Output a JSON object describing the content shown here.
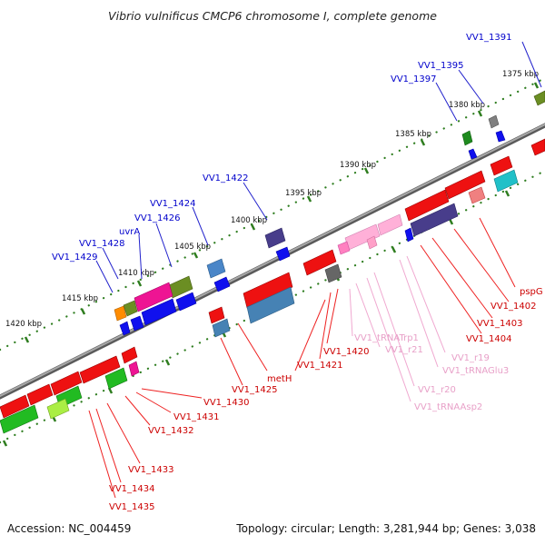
{
  "title": "Vibrio vulnificus CMCP6 chromosome I, complete genome",
  "footer": {
    "accession": "Accession: NC_004459",
    "summary": "Topology: circular; Length: 3,281,944 bp; Genes: 3,038"
  },
  "colors": {
    "axis": "#7f7f7f",
    "tick_marks": "#2e7d1f",
    "label_blue": "#0000cc",
    "label_red": "#cc0000",
    "label_pink": "#e8a0c8",
    "leader_blue": "#2222cc",
    "leader_red": "#ee2222",
    "leader_pink": "#f0a8d0"
  },
  "scale_labels": [
    "1375 kbp",
    "1380 kbp",
    "1385 kbp",
    "1390 kbp",
    "1395 kbp",
    "1400 kbp",
    "1405 kbp",
    "1410 kbp",
    "1415 kbp",
    "1420 kbp"
  ],
  "upper_labels": [
    "VV1_1391",
    "VV1_1395",
    "VV1_1397",
    "VV1_1422",
    "VV1_1424",
    "VV1_1426",
    "uvrA",
    "VV1_1428",
    "VV1_1429"
  ],
  "lower_labels": [
    "pspG",
    "VV1_1402",
    "VV1_1403",
    "VV1_1404",
    "VV1_r19",
    "VV1_tRNAGlu3",
    "VV1_r20",
    "VV1_tRNAAsp2",
    "VV1_r21",
    "VV1_tRNATrp1",
    "VV1_1420",
    "VV1_1421",
    "metH",
    "VV1_1425",
    "VV1_1430",
    "VV1_1431",
    "VV1_1432",
    "VV1_1433",
    "VV1_1434",
    "VV1_1435"
  ]
}
